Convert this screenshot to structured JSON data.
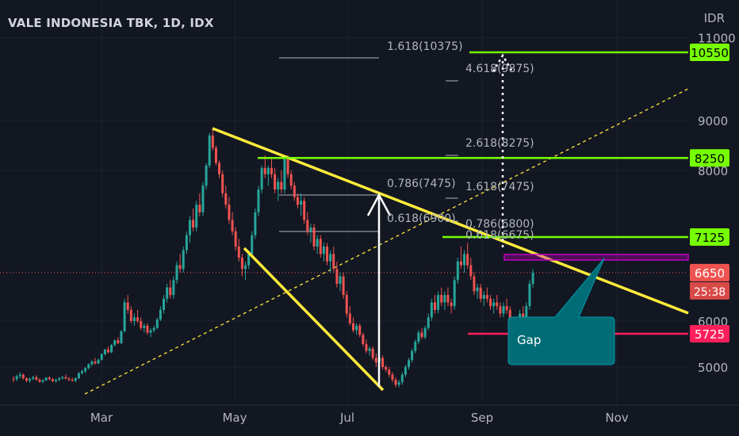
{
  "header": {
    "title": "VALE INDONESIA TBK, 1D, IDX",
    "currency": "IDR"
  },
  "colors": {
    "background": "#131722",
    "grid": "#1e222d",
    "up": "#26a69a",
    "down": "#ef5350",
    "trendline": "#ffeb3b",
    "level": "#76ff03",
    "support": "#ff1f5a",
    "gap_box": "#c000c0",
    "callout": "#006d76",
    "fib": "#b2b5be"
  },
  "chart_data": {
    "type": "candlestick",
    "x_ticks": [
      "Mar",
      "May",
      "Jul",
      "Sep",
      "Nov"
    ],
    "y_ticks": [
      5000,
      6000,
      8000,
      9000,
      11000
    ],
    "y_range": [
      4500,
      11300
    ],
    "levels": [
      {
        "label": "10550",
        "value": 10550,
        "kind": "resistance"
      },
      {
        "label": "8250",
        "value": 8250,
        "kind": "resistance"
      },
      {
        "label": "7125",
        "value": 7125,
        "kind": "resistance"
      }
    ],
    "support": {
      "label": "5725",
      "value": 5725
    },
    "last_price": {
      "label": "6650",
      "value": 6650,
      "countdown": "25:38"
    },
    "fib_labels": [
      {
        "text": "1.618(10375)",
        "value": 10375
      },
      {
        "text": "4.618(9875)",
        "value": 9875
      },
      {
        "text": "2.618(8275)",
        "value": 8275
      },
      {
        "text": "0.786(7475)",
        "value": 7475
      },
      {
        "text": "1.618(7475)",
        "value": 7475
      },
      {
        "text": "0.618(6900)",
        "value": 6900
      },
      {
        "text": "0.786(6800)",
        "value": 6800
      },
      {
        "text": "0.618(6675)",
        "value": 6675
      }
    ],
    "annotation": {
      "text": "Gap"
    },
    "ohlc": [
      [
        4770,
        4820,
        4700,
        4760
      ],
      [
        4760,
        4850,
        4720,
        4820
      ],
      [
        4820,
        4900,
        4780,
        4850
      ],
      [
        4850,
        4870,
        4750,
        4780
      ],
      [
        4780,
        4800,
        4700,
        4730
      ],
      [
        4730,
        4790,
        4690,
        4770
      ],
      [
        4770,
        4830,
        4740,
        4800
      ],
      [
        4800,
        4840,
        4730,
        4750
      ],
      [
        4750,
        4780,
        4690,
        4710
      ],
      [
        4710,
        4760,
        4680,
        4740
      ],
      [
        4740,
        4800,
        4720,
        4790
      ],
      [
        4790,
        4820,
        4740,
        4760
      ],
      [
        4760,
        4790,
        4700,
        4720
      ],
      [
        4720,
        4770,
        4690,
        4750
      ],
      [
        4750,
        4800,
        4720,
        4780
      ],
      [
        4780,
        4830,
        4750,
        4800
      ],
      [
        4800,
        4850,
        4760,
        4770
      ],
      [
        4770,
        4800,
        4720,
        4750
      ],
      [
        4750,
        4790,
        4710,
        4730
      ],
      [
        4730,
        4800,
        4700,
        4780
      ],
      [
        4780,
        4900,
        4760,
        4880
      ],
      [
        4880,
        4950,
        4850,
        4920
      ],
      [
        4920,
        5000,
        4880,
        4980
      ],
      [
        4980,
        5080,
        4950,
        5060
      ],
      [
        5060,
        5150,
        5020,
        5120
      ],
      [
        5120,
        5200,
        5050,
        5080
      ],
      [
        5080,
        5180,
        5060,
        5160
      ],
      [
        5160,
        5300,
        5140,
        5280
      ],
      [
        5280,
        5400,
        5250,
        5380
      ],
      [
        5380,
        5450,
        5300,
        5320
      ],
      [
        5320,
        5500,
        5300,
        5480
      ],
      [
        5480,
        5600,
        5450,
        5580
      ],
      [
        5580,
        5650,
        5500,
        5520
      ],
      [
        5520,
        5800,
        5500,
        5780
      ],
      [
        5780,
        6300,
        5750,
        6250
      ],
      [
        6250,
        6350,
        6100,
        6150
      ],
      [
        6150,
        6200,
        5950,
        6000
      ],
      [
        6000,
        6100,
        5900,
        6050
      ],
      [
        6050,
        6150,
        5950,
        6000
      ],
      [
        6000,
        6050,
        5800,
        5850
      ],
      [
        5850,
        5950,
        5750,
        5900
      ],
      [
        5900,
        5950,
        5700,
        5750
      ],
      [
        5750,
        5850,
        5650,
        5800
      ],
      [
        5800,
        5900,
        5750,
        5850
      ],
      [
        5850,
        6050,
        5820,
        6020
      ],
      [
        6020,
        6200,
        6000,
        6150
      ],
      [
        6150,
        6350,
        6100,
        6300
      ],
      [
        6300,
        6500,
        6250,
        6450
      ],
      [
        6450,
        6550,
        6300,
        6350
      ],
      [
        6350,
        6600,
        6300,
        6550
      ],
      [
        6550,
        6800,
        6500,
        6750
      ],
      [
        6750,
        6900,
        6650,
        6700
      ],
      [
        6700,
        7000,
        6650,
        6950
      ],
      [
        6950,
        7200,
        6900,
        7150
      ],
      [
        7150,
        7400,
        7050,
        7350
      ],
      [
        7350,
        7500,
        7200,
        7250
      ],
      [
        7250,
        7600,
        7200,
        7550
      ],
      [
        7550,
        7700,
        7400,
        7450
      ],
      [
        7450,
        7850,
        7400,
        7800
      ],
      [
        7800,
        8150,
        7750,
        8100
      ],
      [
        8100,
        8750,
        8050,
        8700
      ],
      [
        8700,
        8850,
        8400,
        8450
      ],
      [
        8450,
        8500,
        8100,
        8150
      ],
      [
        8150,
        8200,
        7900,
        7950
      ],
      [
        7950,
        8000,
        7650,
        7700
      ],
      [
        7700,
        7800,
        7500,
        7550
      ],
      [
        7550,
        7650,
        7300,
        7350
      ],
      [
        7350,
        7450,
        7150,
        7200
      ],
      [
        7200,
        7250,
        6950,
        7000
      ],
      [
        7000,
        7100,
        6800,
        6850
      ],
      [
        6850,
        6900,
        6600,
        6700
      ],
      [
        6700,
        6800,
        6550,
        6750
      ],
      [
        6750,
        6950,
        6700,
        6900
      ],
      [
        6900,
        7200,
        6850,
        7150
      ],
      [
        7150,
        7500,
        7100,
        7450
      ],
      [
        7450,
        7800,
        7400,
        7750
      ],
      [
        7750,
        8100,
        7700,
        8050
      ],
      [
        8050,
        8300,
        7900,
        7950
      ],
      [
        7950,
        8100,
        7800,
        8050
      ],
      [
        8050,
        8250,
        7900,
        7950
      ],
      [
        7950,
        8050,
        7700,
        7750
      ],
      [
        7750,
        7900,
        7600,
        7850
      ],
      [
        7850,
        8000,
        7700,
        7750
      ],
      [
        7750,
        8300,
        7700,
        8250
      ],
      [
        8250,
        8300,
        7900,
        7950
      ],
      [
        7950,
        8000,
        7750,
        7800
      ],
      [
        7800,
        7850,
        7600,
        7650
      ],
      [
        7650,
        7700,
        7500,
        7550
      ],
      [
        7550,
        7700,
        7400,
        7600
      ],
      [
        7600,
        7650,
        7300,
        7350
      ],
      [
        7350,
        7450,
        7150,
        7200
      ],
      [
        7200,
        7300,
        7050,
        7250
      ],
      [
        7250,
        7300,
        6950,
        7000
      ],
      [
        7000,
        7150,
        6900,
        7100
      ],
      [
        7100,
        7150,
        6850,
        6900
      ],
      [
        6900,
        7050,
        6800,
        7000
      ],
      [
        7000,
        7050,
        6750,
        6800
      ],
      [
        6800,
        6950,
        6650,
        6900
      ],
      [
        6900,
        7000,
        6650,
        6700
      ],
      [
        6700,
        6800,
        6450,
        6500
      ],
      [
        6500,
        6650,
        6400,
        6600
      ],
      [
        6600,
        6650,
        6300,
        6350
      ],
      [
        6350,
        6400,
        6050,
        6100
      ],
      [
        6100,
        6200,
        5900,
        5950
      ],
      [
        5950,
        6050,
        5750,
        5800
      ],
      [
        5800,
        5950,
        5700,
        5900
      ],
      [
        5900,
        5950,
        5650,
        5700
      ],
      [
        5700,
        5750,
        5450,
        5500
      ],
      [
        5500,
        5600,
        5300,
        5350
      ],
      [
        5350,
        5450,
        5250,
        5400
      ],
      [
        5400,
        5450,
        5150,
        5200
      ],
      [
        5200,
        5300,
        5000,
        5100
      ],
      [
        5100,
        5250,
        5000,
        5200
      ],
      [
        5200,
        5250,
        4950,
        5000
      ],
      [
        5000,
        5050,
        4900,
        4950
      ],
      [
        4950,
        5000,
        4800,
        4850
      ],
      [
        4850,
        4900,
        4700,
        4750
      ],
      [
        4750,
        4800,
        4600,
        4650
      ],
      [
        4650,
        4750,
        4600,
        4700
      ],
      [
        4700,
        4900,
        4650,
        4850
      ],
      [
        4850,
        5050,
        4800,
        5000
      ],
      [
        5000,
        5200,
        4950,
        5150
      ],
      [
        5150,
        5400,
        5100,
        5350
      ],
      [
        5350,
        5600,
        5300,
        5550
      ],
      [
        5550,
        5800,
        5500,
        5750
      ],
      [
        5750,
        5850,
        5600,
        5650
      ],
      [
        5650,
        5900,
        5600,
        5850
      ],
      [
        5850,
        6100,
        5800,
        6050
      ],
      [
        6050,
        6300,
        6000,
        6250
      ],
      [
        6250,
        6350,
        6100,
        6150
      ],
      [
        6150,
        6400,
        6100,
        6350
      ],
      [
        6350,
        6450,
        6200,
        6250
      ],
      [
        6250,
        6400,
        6150,
        6350
      ],
      [
        6350,
        6450,
        6200,
        6250
      ],
      [
        6250,
        6300,
        6100,
        6200
      ],
      [
        6200,
        6600,
        6150,
        6550
      ],
      [
        6550,
        6850,
        6500,
        6800
      ],
      [
        6800,
        7000,
        6700,
        6750
      ],
      [
        6750,
        6950,
        6650,
        6900
      ],
      [
        6900,
        7050,
        6700,
        6750
      ],
      [
        6750,
        6850,
        6550,
        6600
      ],
      [
        6600,
        6650,
        6350,
        6400
      ],
      [
        6400,
        6500,
        6300,
        6450
      ],
      [
        6450,
        6500,
        6250,
        6300
      ],
      [
        6300,
        6400,
        6200,
        6350
      ],
      [
        6350,
        6450,
        6250,
        6300
      ],
      [
        6300,
        6350,
        6150,
        6200
      ],
      [
        6200,
        6300,
        6100,
        6250
      ],
      [
        6250,
        6350,
        6150,
        6200
      ],
      [
        6200,
        6250,
        6050,
        6100
      ],
      [
        6100,
        6250,
        6050,
        6200
      ],
      [
        6200,
        6300,
        6100,
        6150
      ],
      [
        6150,
        6200,
        5950,
        6000
      ],
      [
        6000,
        6050,
        5750,
        5800
      ],
      [
        5800,
        6000,
        5750,
        5950
      ],
      [
        5950,
        6150,
        5900,
        6100
      ],
      [
        6100,
        6200,
        6000,
        6050
      ],
      [
        6050,
        6250,
        6000,
        6200
      ],
      [
        6200,
        6550,
        6150,
        6500
      ],
      [
        6500,
        6700,
        6450,
        6650
      ]
    ]
  }
}
